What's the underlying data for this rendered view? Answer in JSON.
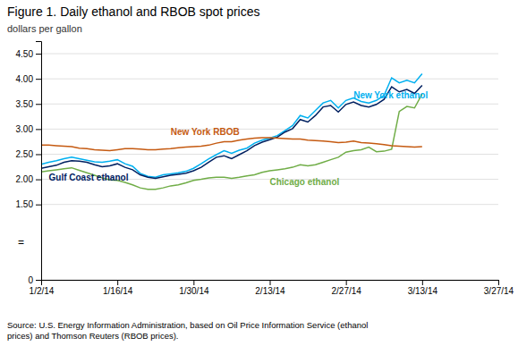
{
  "chart_data": {
    "type": "line",
    "title": "Figure 1. Daily ethanol and RBOB spot prices",
    "ylabel": "dollars per gallon",
    "source": "Source: U.S. Energy Information Administration, based on Oil Price Information Service (ethanol\nprices) and Thomson Reuters (RBOB prices).",
    "x": [
      0,
      1,
      2,
      3,
      4,
      5,
      6,
      7,
      8,
      9,
      10,
      11,
      12,
      13,
      14,
      15,
      16,
      17,
      18,
      19,
      20,
      21,
      22,
      23,
      24,
      25,
      26,
      27,
      28,
      29,
      30,
      31,
      32,
      33,
      34,
      35,
      36,
      37,
      38,
      39,
      40,
      41,
      42,
      43,
      44,
      45,
      46,
      47,
      48,
      49,
      50
    ],
    "xlim": [
      0,
      60
    ],
    "xticks": [
      {
        "value": 0,
        "label": "1/2/14"
      },
      {
        "value": 10,
        "label": "1/16/14"
      },
      {
        "value": 20,
        "label": "1/30/14"
      },
      {
        "value": 30,
        "label": "2/13/14"
      },
      {
        "value": 40,
        "label": "2/27/14"
      },
      {
        "value": 50,
        "label": "3/13/14"
      },
      {
        "value": 60,
        "label": "3/27/14"
      }
    ],
    "ylim": [
      0,
      4.75
    ],
    "yticks": [
      0,
      {
        "value": 1.5,
        "label": "1.50"
      },
      {
        "value": 2.0,
        "label": "2.00"
      },
      {
        "value": 2.5,
        "label": "2.50"
      },
      {
        "value": 3.0,
        "label": "3.00"
      },
      {
        "value": 3.5,
        "label": "3.50"
      },
      {
        "value": 4.0,
        "label": "4.00"
      },
      {
        "value": 4.5,
        "label": "4.50"
      }
    ],
    "grid": true,
    "series": [
      {
        "color": "#00b0f0",
        "values": [
          2.3,
          2.34,
          2.37,
          2.41,
          2.44,
          2.41,
          2.38,
          2.35,
          2.34,
          2.36,
          2.39,
          2.31,
          2.26,
          2.12,
          2.06,
          2.04,
          2.09,
          2.11,
          2.13,
          2.16,
          2.22,
          2.31,
          2.41,
          2.49,
          2.57,
          2.52,
          2.58,
          2.62,
          2.72,
          2.78,
          2.82,
          2.87,
          2.97,
          3.07,
          3.27,
          3.22,
          3.37,
          3.52,
          3.57,
          3.42,
          3.57,
          3.62,
          3.55,
          3.52,
          3.57,
          3.67,
          4.02,
          3.92,
          3.97,
          3.92,
          4.1
        ]
      },
      {
        "color": "#002060",
        "values": [
          2.22,
          2.25,
          2.28,
          2.34,
          2.37,
          2.36,
          2.34,
          2.29,
          2.25,
          2.27,
          2.31,
          2.24,
          2.19,
          2.09,
          2.04,
          2.02,
          2.05,
          2.08,
          2.1,
          2.12,
          2.17,
          2.24,
          2.34,
          2.44,
          2.47,
          2.41,
          2.49,
          2.57,
          2.67,
          2.74,
          2.79,
          2.84,
          2.94,
          3.01,
          3.19,
          3.14,
          3.27,
          3.44,
          3.47,
          3.34,
          3.49,
          3.54,
          3.47,
          3.44,
          3.49,
          3.59,
          3.84,
          3.74,
          3.79,
          3.71,
          3.87
        ]
      },
      {
        "color": "#70ad47",
        "values": [
          2.15,
          2.17,
          2.19,
          2.21,
          2.23,
          2.18,
          2.13,
          2.08,
          2.03,
          1.99,
          1.98,
          1.94,
          1.89,
          1.83,
          1.8,
          1.8,
          1.83,
          1.87,
          1.89,
          1.93,
          1.98,
          2.0,
          2.03,
          2.04,
          2.04,
          2.02,
          2.04,
          2.07,
          2.09,
          2.14,
          2.17,
          2.19,
          2.21,
          2.24,
          2.29,
          2.27,
          2.29,
          2.34,
          2.39,
          2.44,
          2.54,
          2.57,
          2.59,
          2.64,
          2.55,
          2.56,
          2.6,
          3.35,
          3.45,
          3.42,
          3.7
        ]
      },
      {
        "color": "#c55a11",
        "values": [
          2.68,
          2.68,
          2.67,
          2.66,
          2.65,
          2.62,
          2.61,
          2.59,
          2.58,
          2.57,
          2.59,
          2.61,
          2.61,
          2.6,
          2.59,
          2.59,
          2.6,
          2.61,
          2.63,
          2.64,
          2.65,
          2.66,
          2.68,
          2.72,
          2.75,
          2.75,
          2.78,
          2.8,
          2.82,
          2.83,
          2.83,
          2.82,
          2.81,
          2.8,
          2.8,
          2.78,
          2.77,
          2.76,
          2.75,
          2.73,
          2.74,
          2.76,
          2.73,
          2.72,
          2.71,
          2.69,
          2.67,
          2.66,
          2.65,
          2.64,
          2.65
        ]
      }
    ],
    "annotations": [
      {
        "text": "New York ethanol",
        "x": 41,
        "y": 3.62,
        "color": "#00b0f0"
      },
      {
        "text": "New York RBOB",
        "x": 17,
        "y": 2.89,
        "color": "#c55a11"
      },
      {
        "text": "Gulf Coast ethanol",
        "x": 1,
        "y": 1.97,
        "color": "#002060"
      },
      {
        "text": "Chicago ethanol",
        "x": 30,
        "y": 1.88,
        "color": "#70ad47"
      },
      {
        "text": "="
      }
    ]
  }
}
